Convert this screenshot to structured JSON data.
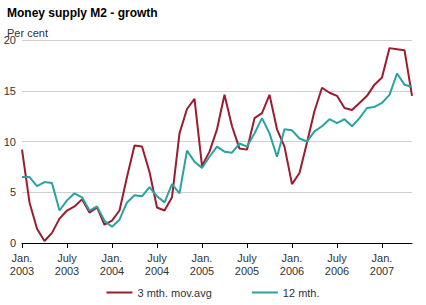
{
  "chart_data": {
    "type": "line",
    "title": "Money supply M2 - growth",
    "y_label": "Per cent",
    "categories": [
      "Jan.\n2003",
      null,
      null,
      null,
      null,
      null,
      "July\n2003",
      null,
      null,
      null,
      null,
      null,
      "Jan.\n2004",
      null,
      null,
      null,
      null,
      null,
      "July\n2004",
      null,
      null,
      null,
      null,
      null,
      "Jan.\n2005",
      null,
      null,
      null,
      null,
      null,
      "July\n2005",
      null,
      null,
      null,
      null,
      null,
      "Jan.\n2006",
      null,
      null,
      null,
      null,
      null,
      "July\n2006",
      null,
      null,
      null,
      null,
      null,
      "Jan.\n2007",
      null,
      null,
      null,
      null
    ],
    "series": [
      {
        "name": "3 mth. mov.avg",
        "color": "#9b1c2e",
        "values": [
          9.2,
          4.0,
          1.4,
          0.2,
          1.0,
          2.4,
          3.2,
          3.6,
          4.3,
          3.0,
          3.5,
          1.8,
          2.2,
          3.2,
          6.5,
          9.6,
          9.5,
          7.0,
          3.5,
          3.2,
          4.5,
          10.8,
          13.2,
          14.2,
          7.6,
          9.0,
          11.2,
          14.6,
          11.5,
          9.3,
          9.2,
          12.3,
          12.8,
          14.6,
          11.2,
          9.5,
          5.8,
          6.9,
          9.9,
          13.0,
          15.3,
          14.8,
          14.5,
          13.3,
          13.1,
          13.8,
          14.5,
          15.6,
          16.3,
          19.2,
          19.1,
          19.0,
          14.5
        ]
      },
      {
        "name": "12 mth.",
        "color": "#2aa3a0",
        "values": [
          6.5,
          6.5,
          5.6,
          6.0,
          5.9,
          3.2,
          4.2,
          4.9,
          4.5,
          3.2,
          3.6,
          2.2,
          1.6,
          2.3,
          4.0,
          4.7,
          4.6,
          5.5,
          4.6,
          4.0,
          5.8,
          4.9,
          9.1,
          8.0,
          7.4,
          8.5,
          9.5,
          9.0,
          8.9,
          9.8,
          9.5,
          10.8,
          12.3,
          10.8,
          8.5,
          11.2,
          11.1,
          10.3,
          10.0,
          11.0,
          11.5,
          12.2,
          11.8,
          12.2,
          11.5,
          12.3,
          13.3,
          13.4,
          13.8,
          14.6,
          16.7,
          15.6,
          15.4
        ]
      }
    ],
    "ylim": [
      0,
      20
    ],
    "yticks": [
      0,
      5,
      10,
      15,
      20
    ],
    "grid": true,
    "legend": "bottom"
  }
}
